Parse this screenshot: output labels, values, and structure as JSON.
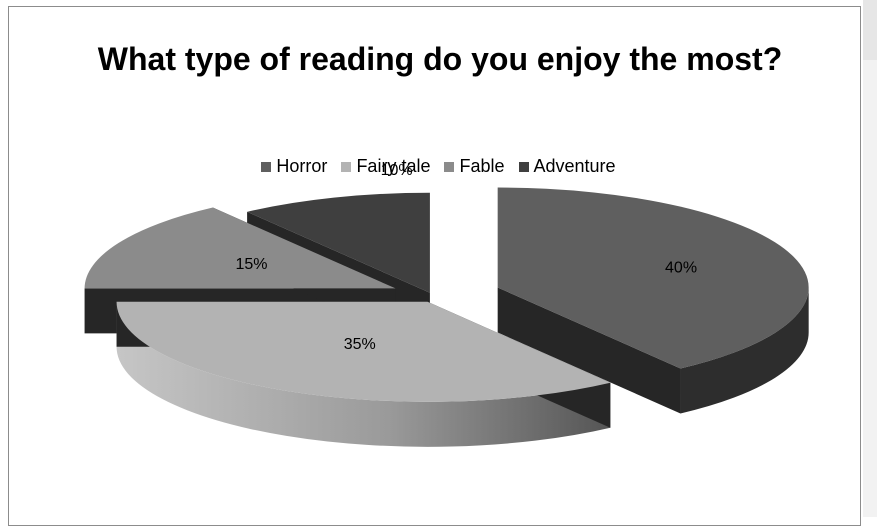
{
  "chart_data": {
    "type": "pie",
    "title": "What type of reading do you enjoy the most?",
    "categories": [
      "Horror",
      "Fairy tale",
      "Fable",
      "Adventure"
    ],
    "values": [
      40,
      35,
      15,
      10
    ],
    "labels": [
      "40%",
      "35%",
      "15%",
      "10%"
    ],
    "legend_position": "top",
    "style": "3d-exploded",
    "colors": {
      "Horror": "#5f5f5f",
      "Fairy tale": "#b3b3b3",
      "Fable": "#8b8b8b",
      "Adventure": "#3f3f3f"
    }
  }
}
